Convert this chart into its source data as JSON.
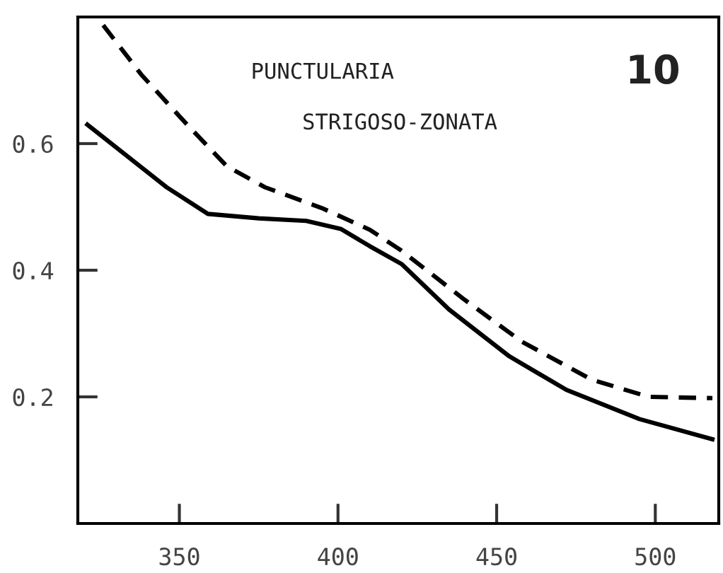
{
  "chart_data": {
    "type": "line",
    "xlim": [
      318,
      520
    ],
    "ylim": [
      0,
      0.8
    ],
    "xticks": [
      350,
      400,
      450,
      500
    ],
    "yticks": [
      0.2,
      0.4,
      0.6
    ],
    "grid": false,
    "marker": "none",
    "annotations": [
      "PUNCTULARIA",
      "STRIGOSO-ZONATA",
      "10"
    ],
    "series": [
      {
        "color": "#000000",
        "line_style": "solid",
        "x": [
          321,
          346,
          359,
          375,
          390,
          401,
          410,
          420,
          435,
          454,
          472,
          495,
          518
        ],
        "values": [
          0.63,
          0.531,
          0.489,
          0.482,
          0.478,
          0.465,
          0.438,
          0.41,
          0.338,
          0.264,
          0.211,
          0.165,
          0.133
        ]
      },
      {
        "color": "#000000",
        "line_style": "dashed",
        "x": [
          326,
          338,
          353,
          365,
          377,
          395,
          410,
          420,
          440,
          458,
          480,
          498,
          518
        ],
        "values": [
          0.787,
          0.709,
          0.627,
          0.564,
          0.531,
          0.498,
          0.464,
          0.431,
          0.353,
          0.287,
          0.227,
          0.2,
          0.198
        ]
      }
    ]
  }
}
